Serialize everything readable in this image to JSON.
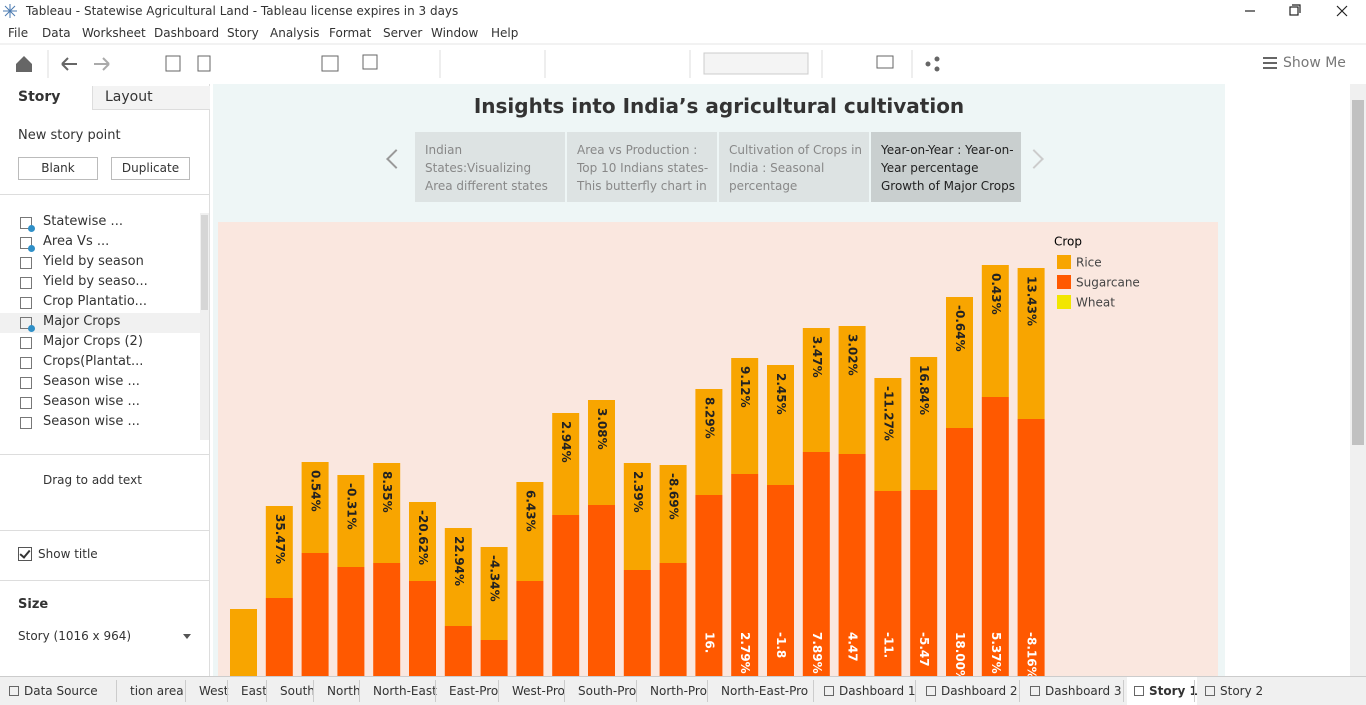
{
  "window": {
    "title": "Tableau - Statewise Agricultural Land - Tableau license expires in 3 days"
  },
  "menu": [
    "File",
    "Data",
    "Worksheet",
    "Dashboard",
    "Story",
    "Analysis",
    "Format",
    "Server",
    "Window",
    "Help"
  ],
  "toolbar": {
    "show_me": "Show Me"
  },
  "sidebar": {
    "tabs": [
      "Story",
      "Layout"
    ],
    "new_story_point": "New story point",
    "buttons": [
      "Blank",
      "Duplicate"
    ],
    "sheets": [
      "Statewise ...",
      "Area Vs ...",
      "Yield by season",
      "Yield by seaso...",
      "Crop Plantatio...",
      "Major Crops",
      "Major Crops (2)",
      "Crops(Plantat...",
      "Season wise ...",
      "Season wise ...",
      "Season wise ..."
    ],
    "drag_text": "Drag to add text",
    "show_title": "Show title",
    "size_label": "Size",
    "size_value": "Story (1016 x 964)"
  },
  "story": {
    "title": "Insights into India’s agricultural cultivation",
    "active_point": 3,
    "points": [
      [
        "Indian",
        "States:Visualizing",
        "Area different states"
      ],
      [
        "Area vs Production :",
        "Top 10 Indians states-",
        "This butterfly chart in"
      ],
      [
        "Cultivation of Crops in",
        "India : Seasonal",
        "percentage"
      ],
      [
        "Year-on-Year : Year-on-",
        "Year percentage",
        "Growth of Major Crops"
      ]
    ]
  },
  "chart_data": {
    "type": "bar",
    "stacked": true,
    "legend_title": "Crop",
    "legend": "top-right",
    "ylim": [
      0,
      460
    ],
    "categories": [
      null,
      null,
      null,
      null,
      null,
      null,
      null,
      null,
      null,
      null,
      null,
      null,
      null,
      null,
      null,
      null,
      null,
      null,
      null,
      null,
      null,
      null,
      null
    ],
    "series": [
      {
        "name": "Rice",
        "color": "#f8a500",
        "values": [
          67,
          92,
          91,
          92,
          100,
          79,
          98,
          93,
          99,
          102,
          105,
          107,
          98,
          106,
          116,
          120,
          124,
          128,
          113,
          133,
          131,
          132,
          151
        ],
        "labels": [
          null,
          "35.47%",
          "0.54%",
          "-0.31%",
          "8.35%",
          "-20.62%",
          "22.94%",
          "-4.34%",
          "6.43%",
          "2.94%",
          "3.08%",
          "2.39%",
          "-8.69%",
          "8.29%",
          "9.12%",
          "2.45%",
          "3.47%",
          "3.02%",
          "-11.27%",
          "16.84%",
          "-0.64%",
          "0.43%",
          "13.43%"
        ]
      },
      {
        "name": "Sugarcane",
        "color": "#ff5900",
        "values": [
          null,
          78,
          123,
          109,
          113,
          95,
          50,
          36,
          95,
          161,
          171,
          106,
          113,
          181,
          202,
          191,
          224,
          222,
          185,
          186,
          248,
          279,
          257
        ],
        "labels": [
          null,
          null,
          null,
          null,
          null,
          null,
          null,
          null,
          null,
          null,
          null,
          null,
          null,
          "16.",
          "2.79%",
          "-1.8",
          "7.89%",
          "4.47",
          "-11.",
          "-5.47",
          "18.00%",
          "5.37%",
          "-8.16%"
        ]
      },
      {
        "name": "Wheat",
        "color": "#f2e600",
        "values": [
          null,
          null,
          null,
          null,
          null,
          null,
          null,
          null,
          null,
          null,
          null,
          null,
          null,
          null,
          null,
          null,
          null,
          null,
          null,
          null,
          null,
          null,
          null
        ]
      }
    ]
  },
  "tabs": {
    "items": [
      "Data Source",
      "tion area",
      "West",
      "East",
      "South",
      "North",
      "North-East",
      "East-Pro",
      "West-Pro",
      "South-Pro",
      "North-Pro",
      "North-East-Pro",
      "Dashboard 1",
      "Dashboard 2",
      "Dashboard 3",
      "Story 1",
      "Story 2"
    ],
    "active": 15
  }
}
